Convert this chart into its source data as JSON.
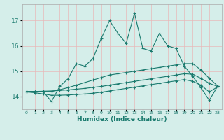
{
  "title": "",
  "xlabel": "Humidex (Indice chaleur)",
  "ylabel": "",
  "bg_color": "#d5eeea",
  "grid_color": "#c8dbd8",
  "line_color": "#1a7a6e",
  "xlim": [
    -0.5,
    23.5
  ],
  "ylim": [
    13.5,
    17.65
  ],
  "yticks": [
    14,
    15,
    16,
    17
  ],
  "xticks": [
    0,
    1,
    2,
    3,
    4,
    5,
    6,
    7,
    8,
    9,
    10,
    11,
    12,
    13,
    14,
    15,
    16,
    17,
    18,
    19,
    20,
    21,
    22,
    23
  ],
  "line1_x": [
    0,
    1,
    2,
    3,
    4,
    5,
    6,
    7,
    8,
    9,
    10,
    11,
    12,
    13,
    14,
    15,
    16,
    17,
    18,
    19,
    20,
    21,
    22,
    23
  ],
  "line1_y": [
    14.2,
    14.2,
    14.2,
    13.8,
    14.4,
    14.7,
    15.3,
    15.2,
    15.5,
    16.3,
    17.0,
    16.5,
    16.1,
    17.3,
    15.9,
    15.8,
    16.5,
    16.0,
    15.9,
    15.2,
    14.8,
    14.35,
    13.85,
    14.4
  ],
  "line2_x": [
    0,
    1,
    2,
    3,
    4,
    5,
    6,
    7,
    8,
    9,
    10,
    11,
    12,
    13,
    14,
    15,
    16,
    17,
    18,
    19,
    20,
    21,
    22,
    23
  ],
  "line2_y": [
    14.2,
    14.2,
    14.2,
    14.2,
    14.27,
    14.35,
    14.45,
    14.55,
    14.65,
    14.75,
    14.85,
    14.9,
    14.95,
    15.0,
    15.05,
    15.1,
    15.15,
    15.2,
    15.25,
    15.3,
    15.3,
    15.05,
    14.72,
    14.42
  ],
  "line3_x": [
    0,
    1,
    2,
    3,
    4,
    5,
    6,
    7,
    8,
    9,
    10,
    11,
    12,
    13,
    14,
    15,
    16,
    17,
    18,
    19,
    20,
    21,
    22,
    23
  ],
  "line3_y": [
    14.2,
    14.2,
    14.21,
    14.22,
    14.24,
    14.26,
    14.29,
    14.32,
    14.36,
    14.4,
    14.45,
    14.5,
    14.55,
    14.6,
    14.65,
    14.7,
    14.75,
    14.8,
    14.85,
    14.9,
    14.88,
    14.72,
    14.52,
    14.4
  ],
  "line4_x": [
    0,
    1,
    2,
    3,
    4,
    5,
    6,
    7,
    8,
    9,
    10,
    11,
    12,
    13,
    14,
    15,
    16,
    17,
    18,
    19,
    20,
    21,
    22,
    23
  ],
  "line4_y": [
    14.18,
    14.15,
    14.1,
    14.05,
    14.05,
    14.06,
    14.08,
    14.1,
    14.13,
    14.17,
    14.22,
    14.27,
    14.32,
    14.37,
    14.42,
    14.47,
    14.52,
    14.57,
    14.62,
    14.67,
    14.6,
    14.45,
    14.18,
    14.38
  ]
}
